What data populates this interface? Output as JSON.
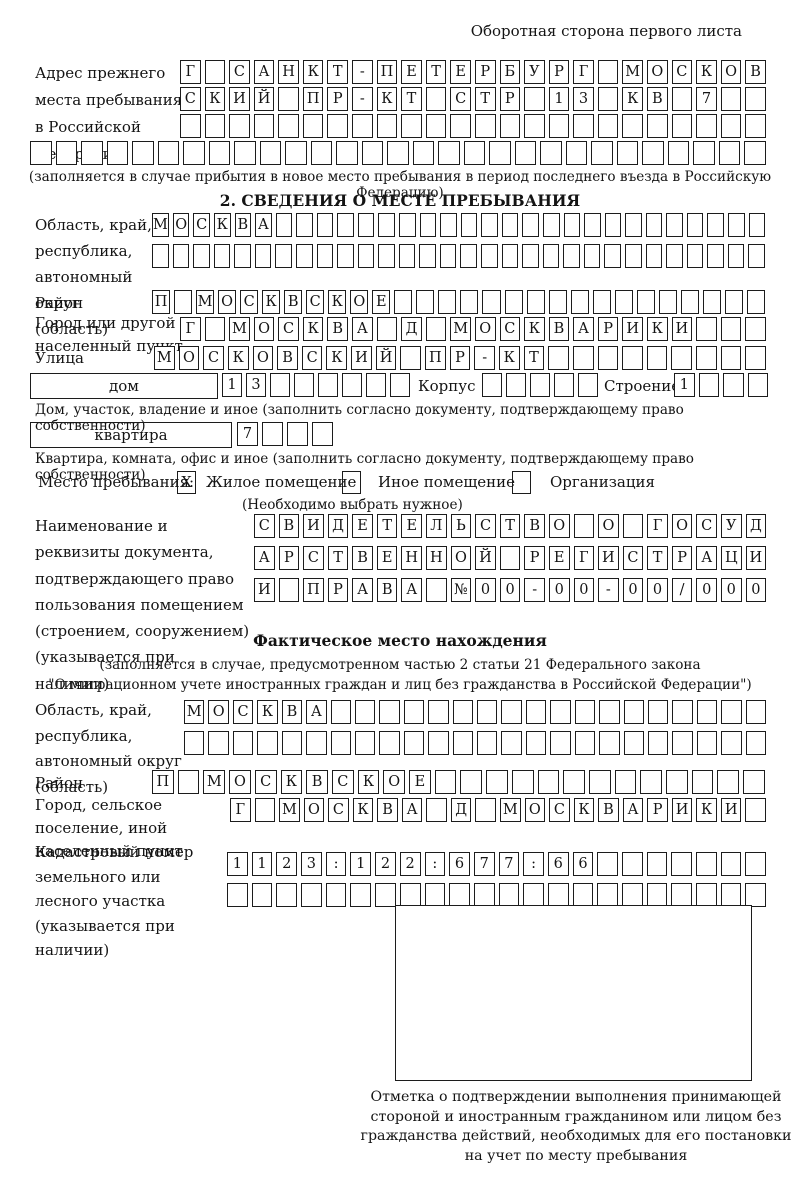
{
  "ink_color": "#1c1c1c",
  "header": {
    "note": "Оборотная сторона первого листа"
  },
  "prev_address": {
    "label": "Адрес прежнего места пребывания в Российской Федерации",
    "rows": [
      [
        "Г",
        "",
        "С",
        "А",
        "Н",
        "К",
        "Т",
        "-",
        "П",
        "Е",
        "Т",
        "Е",
        "Р",
        "Б",
        "У",
        "Р",
        "Г",
        "",
        "М",
        "О",
        "С",
        "К",
        "О",
        "В"
      ],
      [
        "С",
        "К",
        "И",
        "Й",
        "",
        "П",
        "Р",
        "-",
        "К",
        "Т",
        "",
        "С",
        "Т",
        "Р",
        "",
        "1",
        "3",
        "",
        "К",
        "В",
        "",
        "7",
        "",
        ""
      ],
      [
        "",
        "",
        "",
        "",
        "",
        "",
        "",
        "",
        "",
        "",
        "",
        "",
        "",
        "",
        "",
        "",
        "",
        "",
        "",
        "",
        "",
        "",
        "",
        ""
      ],
      [
        "",
        "",
        "",
        "",
        "",
        "",
        "",
        "",
        "",
        "",
        "",
        "",
        "",
        "",
        "",
        "",
        "",
        "",
        "",
        "",
        "",
        "",
        "",
        "",
        "",
        "",
        "",
        "",
        ""
      ]
    ],
    "note": "(заполняется в случае прибытия в новое место пребывания в период последнего въезда в Российскую Федерацию)"
  },
  "section2": {
    "title": "2. СВЕДЕНИЯ О МЕСТЕ ПРЕБЫВАНИЯ",
    "region": {
      "label": "Область, край, республика, автономный округ (область)",
      "rows": [
        [
          "М",
          "О",
          "С",
          "К",
          "В",
          "А",
          "",
          "",
          "",
          "",
          "",
          "",
          "",
          "",
          "",
          "",
          "",
          "",
          "",
          "",
          "",
          "",
          "",
          "",
          "",
          "",
          "",
          "",
          "",
          ""
        ],
        [
          "",
          "",
          "",
          "",
          "",
          "",
          "",
          "",
          "",
          "",
          "",
          "",
          "",
          "",
          "",
          "",
          "",
          "",
          "",
          "",
          "",
          "",
          "",
          "",
          "",
          "",
          "",
          "",
          "",
          ""
        ]
      ]
    },
    "district": {
      "label": "Район",
      "cells": [
        "П",
        "",
        "М",
        "О",
        "С",
        "К",
        "В",
        "С",
        "К",
        "О",
        "Е",
        "",
        "",
        "",
        "",
        "",
        "",
        "",
        "",
        "",
        "",
        "",
        "",
        "",
        "",
        "",
        "",
        ""
      ]
    },
    "city": {
      "label": "Город или другой населенный пункт",
      "cells": [
        "Г",
        "",
        "М",
        "О",
        "С",
        "К",
        "В",
        "А",
        "",
        "Д",
        "",
        "М",
        "О",
        "С",
        "К",
        "В",
        "А",
        "Р",
        "И",
        "К",
        "И",
        "",
        "",
        ""
      ]
    },
    "street": {
      "label": "Улица",
      "cells": [
        "М",
        "О",
        "С",
        "К",
        "О",
        "В",
        "С",
        "К",
        "И",
        "Й",
        "",
        "П",
        "Р",
        "-",
        "К",
        "Т",
        "",
        "",
        "",
        "",
        "",
        "",
        "",
        "",
        ""
      ]
    },
    "house_row": {
      "house_label": "дом",
      "house_cells": [
        "1",
        "3",
        "",
        "",
        "",
        "",
        "",
        ""
      ],
      "korpus_label": "Корпус",
      "korpus_cells": [
        "",
        "",
        "",
        "",
        ""
      ],
      "stroenie_label": "Строение",
      "stroenie_cells": [
        "1",
        "",
        "",
        ""
      ]
    },
    "house_note": "Дом, участок, владение и иное (заполнить согласно документу, подтверждающему право собственности)",
    "apartment": {
      "label": "квартира",
      "cells": [
        "7",
        "",
        "",
        ""
      ]
    },
    "apartment_note": "Квартира, комната, офис и иное (заполнить согласно документу, подтверждающему право собственности)",
    "place_type": {
      "label": "Место пребывания:",
      "options": [
        {
          "label": "Жилое помещение",
          "mark": "X"
        },
        {
          "label": "Иное помещение",
          "mark": ""
        },
        {
          "label": "Организация",
          "mark": ""
        }
      ],
      "note": "(Необходимо выбрать нужное)"
    },
    "doc": {
      "label": "Наименование и реквизиты документа, подтверждающего право пользования помещением (строением, сооружением) (указывается при наличии)",
      "rows": [
        [
          "С",
          "В",
          "И",
          "Д",
          "Е",
          "Т",
          "Е",
          "Л",
          "Ь",
          "С",
          "Т",
          "В",
          "О",
          "",
          "О",
          "",
          "Г",
          "О",
          "С",
          "У",
          "Д"
        ],
        [
          "А",
          "Р",
          "С",
          "Т",
          "В",
          "Е",
          "Н",
          "Н",
          "О",
          "Й",
          "",
          "Р",
          "Е",
          "Г",
          "И",
          "С",
          "Т",
          "Р",
          "А",
          "Ц",
          "И"
        ],
        [
          "И",
          "",
          "П",
          "Р",
          "А",
          "В",
          "А",
          "",
          "№",
          "0",
          "0",
          "-",
          "0",
          "0",
          "-",
          "0",
          "0",
          "/",
          "0",
          "0",
          "0"
        ]
      ]
    }
  },
  "actual_location": {
    "title": "Фактическое место нахождения",
    "note1": "(заполняется в случае, предусмотренном частью 2 статьи 21 Федерального закона",
    "note2": "\"О миграционном учете иностранных граждан и лиц без гражданства в Российской Федерации\")",
    "region": {
      "label": "Область, край, республика, автономный округ (область)",
      "rows": [
        [
          "М",
          "О",
          "С",
          "К",
          "В",
          "А",
          "",
          "",
          "",
          "",
          "",
          "",
          "",
          "",
          "",
          "",
          "",
          "",
          "",
          "",
          "",
          "",
          "",
          ""
        ],
        [
          "",
          "",
          "",
          "",
          "",
          "",
          "",
          "",
          "",
          "",
          "",
          "",
          "",
          "",
          "",
          "",
          "",
          "",
          "",
          "",
          "",
          "",
          "",
          ""
        ]
      ]
    },
    "district": {
      "label": "Район",
      "cells": [
        "П",
        "",
        "М",
        "О",
        "С",
        "К",
        "В",
        "С",
        "К",
        "О",
        "Е",
        "",
        "",
        "",
        "",
        "",
        "",
        "",
        "",
        "",
        "",
        "",
        "",
        ""
      ]
    },
    "city": {
      "label": "Город, сельское поселение, иной населенный пункт",
      "cells": [
        "Г",
        "",
        "М",
        "О",
        "С",
        "К",
        "В",
        "А",
        "",
        "Д",
        "",
        "М",
        "О",
        "С",
        "К",
        "В",
        "А",
        "Р",
        "И",
        "К",
        "И",
        ""
      ]
    },
    "cadastral": {
      "label": "Кадастровый номер земельного или лесного участка (указывается при наличии)",
      "rows": [
        [
          "1",
          "1",
          "2",
          "3",
          ":",
          "1",
          "2",
          "2",
          ":",
          "6",
          "7",
          "7",
          ":",
          "6",
          "6",
          "",
          "",
          "",
          "",
          "",
          "",
          ""
        ],
        [
          "",
          "",
          "",
          "",
          "",
          "",
          "",
          "",
          "",
          "",
          "",
          "",
          "",
          "",
          "",
          "",
          "",
          "",
          "",
          "",
          "",
          ""
        ]
      ]
    },
    "stamp_note": "Отметка о подтверждении выполнения принимающей стороной и иностранным гражданином или лицом без гражданства действий, необходимых для его постановки на учет по месту пребывания"
  }
}
